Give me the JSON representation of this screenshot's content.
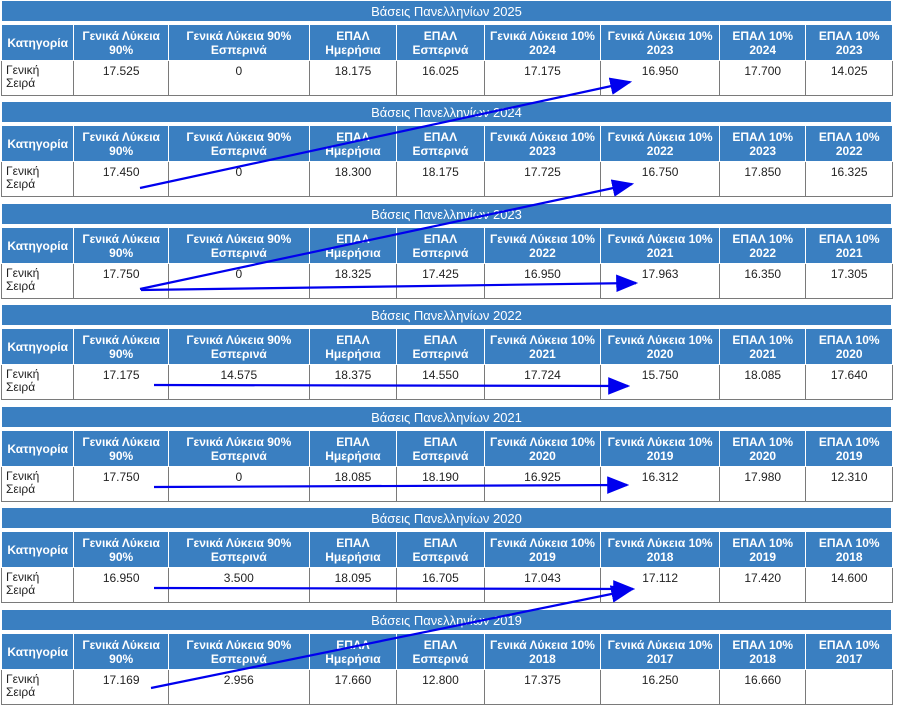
{
  "headers_fixed": {
    "category": "Κατηγορία",
    "gl90": "Γενικά Λύκεια 90%",
    "gl90_evening": "Γενικά Λύκεια 90% Εσπερινά",
    "epal_day": "ΕΠΑΛ Ημερήσια",
    "epal_evening": "ΕΠΑΛ Εσπερινά",
    "gl10_prefix": "Γενικά Λύκεια 10%",
    "epal10_prefix": "ΕΠΑΛ 10%"
  },
  "category_value": "Γενική Σειρά",
  "blocks": [
    {
      "title": "Βάσεις Πανελληνίων 2025",
      "gl10_a": "2024",
      "gl10_b": "2023",
      "epal10_a": "2024",
      "epal10_b": "2023",
      "values": [
        "17.525",
        "0",
        "18.175",
        "16.025",
        "17.175",
        "16.950",
        "17.700",
        "14.025"
      ]
    },
    {
      "title": "Βάσεις Πανελληνίων 2024",
      "gl10_a": "2023",
      "gl10_b": "2022",
      "epal10_a": "2023",
      "epal10_b": "2022",
      "values": [
        "17.450",
        "0",
        "18.300",
        "18.175",
        "17.725",
        "16.750",
        "17.850",
        "16.325"
      ]
    },
    {
      "title": "Βάσεις Πανελληνίων 2023",
      "gl10_a": "2022",
      "gl10_b": "2021",
      "epal10_a": "2022",
      "epal10_b": "2021",
      "values": [
        "17.750",
        "0",
        "18.325",
        "17.425",
        "16.950",
        "17.963",
        "16.350",
        "17.305"
      ]
    },
    {
      "title": "Βάσεις Πανελληνίων 2022",
      "gl10_a": "2021",
      "gl10_b": "2020",
      "epal10_a": "2021",
      "epal10_b": "2020",
      "values": [
        "17.175",
        "14.575",
        "18.375",
        "14.550",
        "17.724",
        "15.750",
        "18.085",
        "17.640"
      ]
    },
    {
      "title": "Βάσεις Πανελληνίων 2021",
      "gl10_a": "2020",
      "gl10_b": "2019",
      "epal10_a": "2020",
      "epal10_b": "2019",
      "values": [
        "17.750",
        "0",
        "18.085",
        "18.190",
        "16.925",
        "16.312",
        "17.980",
        "12.310"
      ]
    },
    {
      "title": "Βάσεις Πανελληνίων 2020",
      "gl10_a": "2019",
      "gl10_b": "2018",
      "epal10_a": "2019",
      "epal10_b": "2018",
      "values": [
        "16.950",
        "3.500",
        "18.095",
        "16.705",
        "17.043",
        "17.112",
        "17.420",
        "14.600"
      ]
    },
    {
      "title": "Βάσεις Πανελληνίων 2019",
      "gl10_a": "2018",
      "gl10_b": "2017",
      "epal10_a": "2018",
      "epal10_b": "2017",
      "values": [
        "17.169",
        "2.956",
        "17.660",
        "12.800",
        "17.375",
        "16.250",
        "16.660",
        ""
      ]
    }
  ],
  "colors": {
    "header_blue": "#3a7fc1",
    "arrow_blue": "#0000ee"
  }
}
